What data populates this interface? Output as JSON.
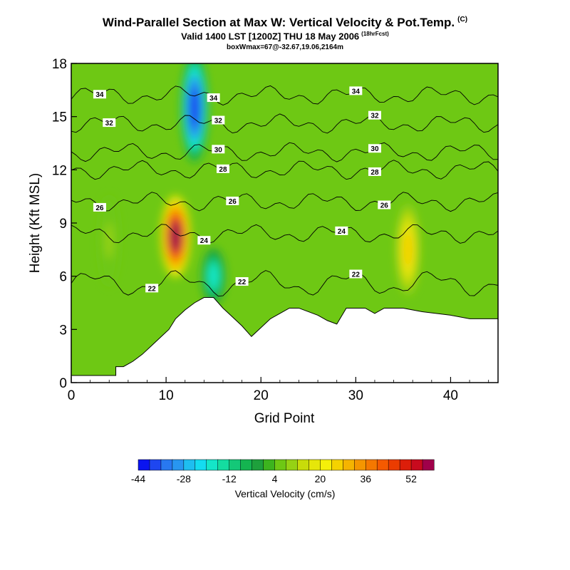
{
  "header": {
    "title": "Wind-Parallel Section at Max W: Vertical Velocity & Pot.Temp.",
    "title_mark": "(C)",
    "subtitle": "Valid 1400 LST [1200Z] THU 18 May 2006",
    "subtitle_note": "(18hrFcst)",
    "box_info": "boxWmax=67@-32.67,19.06,2164m"
  },
  "chart_data": {
    "type": "heatmap",
    "xlabel": "Grid Point",
    "ylabel": "Height (Kft MSL)",
    "xlim": [
      0,
      45
    ],
    "ylim": [
      0,
      18
    ],
    "x_ticks": [
      "0",
      "10",
      "20",
      "30",
      "40"
    ],
    "y_ticks": [
      "0",
      "3",
      "6",
      "9",
      "12",
      "15",
      "18"
    ],
    "colorbar": {
      "label": "Vertical Velocity (cm/s)",
      "tick_labels": [
        "-44",
        "-28",
        "-12",
        "4",
        "20",
        "36",
        "52"
      ],
      "levels": [
        -44,
        -40,
        -36,
        -32,
        -28,
        -24,
        -20,
        -16,
        -12,
        -8,
        -4,
        0,
        4,
        8,
        12,
        16,
        20,
        24,
        28,
        32,
        36,
        40,
        44,
        48,
        52,
        56
      ],
      "colors": [
        "#0a14f0",
        "#1e46f0",
        "#2878f0",
        "#2896f0",
        "#1ebef0",
        "#14dcf0",
        "#14e6c8",
        "#14dca0",
        "#14c878",
        "#14b450",
        "#1ea03c",
        "#3cb41e",
        "#6ec814",
        "#96d214",
        "#c8dc0a",
        "#e6e60a",
        "#f5f00a",
        "#f5d200",
        "#f5b400",
        "#f59600",
        "#f57800",
        "#f55a00",
        "#eb3c00",
        "#dc1e0a",
        "#c80a1e",
        "#a0004a"
      ]
    },
    "vertical_velocity_features": [
      {
        "x": 11,
        "y_min": 6.5,
        "y_max": 10,
        "value": 56
      },
      {
        "x": 13,
        "y_min": 13,
        "y_max": 18,
        "value": -40
      },
      {
        "x": 15,
        "y_min": 5,
        "y_max": 7,
        "value": -20
      },
      {
        "x": 35.5,
        "y_min": 5.5,
        "y_max": 9.5,
        "value": 24
      },
      {
        "x": 4,
        "y_min": 6,
        "y_max": 10,
        "value": 8
      }
    ],
    "terrain_profile": [
      [
        0,
        0.4
      ],
      [
        4.7,
        0.4
      ],
      [
        4.7,
        0.9
      ],
      [
        5.5,
        0.9
      ],
      [
        6.5,
        1.2
      ],
      [
        7.5,
        1.6
      ],
      [
        8.5,
        2.1
      ],
      [
        9.5,
        2.6
      ],
      [
        10.3,
        3.0
      ],
      [
        11,
        3.6
      ],
      [
        12,
        4.1
      ],
      [
        13,
        4.5
      ],
      [
        14,
        4.8
      ],
      [
        15,
        4.8
      ],
      [
        16,
        4.2
      ],
      [
        17,
        3.7
      ],
      [
        18,
        3.2
      ],
      [
        19,
        2.6
      ],
      [
        20,
        3.1
      ],
      [
        21,
        3.6
      ],
      [
        22,
        3.9
      ],
      [
        23,
        4.2
      ],
      [
        24,
        4.2
      ],
      [
        25,
        4.0
      ],
      [
        26,
        3.8
      ],
      [
        27,
        3.5
      ],
      [
        28,
        3.3
      ],
      [
        29,
        4.2
      ],
      [
        31,
        4.2
      ],
      [
        32,
        3.9
      ],
      [
        33,
        4.2
      ],
      [
        35,
        4.2
      ],
      [
        37,
        4.0
      ],
      [
        40,
        3.8
      ],
      [
        42,
        3.6
      ],
      [
        45,
        3.6
      ]
    ],
    "theta_contours": [
      {
        "label": "22",
        "base": 5.6,
        "bump": 0.5,
        "label_x": [
          8.5,
          18,
          30
        ]
      },
      {
        "label": "24",
        "base": 8.4,
        "bump": 0.3,
        "label_x": [
          14,
          28.5
        ]
      },
      {
        "label": "26",
        "base": 10.2,
        "bump": 0.3,
        "label_x": [
          3,
          17,
          33
        ]
      },
      {
        "label": "28",
        "base": 12.0,
        "bump": 0.3,
        "label_x": [
          16,
          32
        ]
      },
      {
        "label": "30",
        "base": 13.0,
        "bump": 0.3,
        "label_x": [
          15.5,
          32
        ]
      },
      {
        "label": "32",
        "base": 14.6,
        "bump": 0.3,
        "label_x": [
          4,
          15.5,
          32
        ]
      },
      {
        "label": "34",
        "base": 16.2,
        "bump": 0.3,
        "label_x": [
          3,
          15,
          30
        ]
      }
    ]
  }
}
